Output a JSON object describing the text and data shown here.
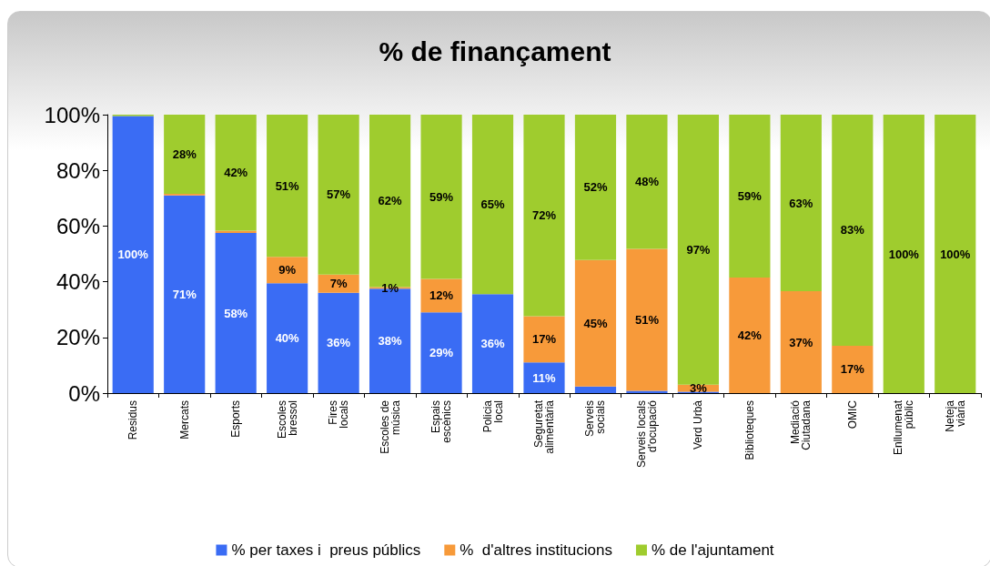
{
  "chart_data": {
    "type": "bar",
    "title": "% de finançament",
    "stacked": true,
    "legend": "bottom",
    "grid": false,
    "categories": [
      "Residus",
      "Mercats",
      "Esports",
      "Escoles bressol",
      "Fires locals",
      "Escoles de música",
      "Espais escènics",
      "Policia local",
      "Seguretat alimentària",
      "Serveis socials",
      "Serveis locals d'ocupació",
      "Verd Urbà",
      "Biblioteques",
      "Mediació Ciutadana",
      "OMIC",
      "Enllumenat públic",
      "Neteja viària"
    ],
    "ylim": [
      0,
      100
    ],
    "yticks": [
      {
        "value": 0,
        "label": "0%"
      },
      {
        "value": 20,
        "label": "20%"
      },
      {
        "value": 40,
        "label": "40%"
      },
      {
        "value": 60,
        "label": "60%"
      },
      {
        "value": 80,
        "label": "80%"
      },
      {
        "value": 100,
        "label": "100%"
      }
    ],
    "series": [
      {
        "name": "% per taxes i  preus públics",
        "color": "#3a6cf4",
        "values": [
          99.5,
          71,
          57.5,
          39.5,
          36,
          37.5,
          29,
          35.5,
          11,
          2.4,
          0.8,
          0.5,
          0,
          0,
          0,
          0,
          0
        ],
        "value_labels": [
          "100%",
          "71%",
          "58%",
          "40%",
          "36%",
          "38%",
          "29%",
          "36%",
          "11%",
          null,
          null,
          null,
          null,
          null,
          null,
          null,
          null
        ]
      },
      {
        "name": "%  d'altres institucions",
        "color": "#f79a3a",
        "values": [
          0,
          0.6,
          0.8,
          9.4,
          6.6,
          0.6,
          12,
          0,
          16.6,
          45.4,
          51,
          2.5,
          41.5,
          36.6,
          17,
          0,
          0
        ],
        "value_labels": [
          null,
          null,
          null,
          "9%",
          "7%",
          "1%",
          "12%",
          null,
          "17%",
          "45%",
          "51%",
          "3%",
          "42%",
          "37%",
          "17%",
          null,
          null
        ]
      },
      {
        "name": "% de l'ajuntament",
        "color": "#9fcc2e",
        "values": [
          0.5,
          28.4,
          41.7,
          51.1,
          57.4,
          61.9,
          59,
          64.5,
          72.4,
          52.2,
          48.2,
          97,
          58.5,
          63.4,
          83,
          100,
          100
        ],
        "value_labels": [
          null,
          "28%",
          "42%",
          "51%",
          "57%",
          "62%",
          "59%",
          "65%",
          "72%",
          "52%",
          "48%",
          "97%",
          "59%",
          "63%",
          "83%",
          "100%",
          "100%"
        ]
      }
    ]
  }
}
